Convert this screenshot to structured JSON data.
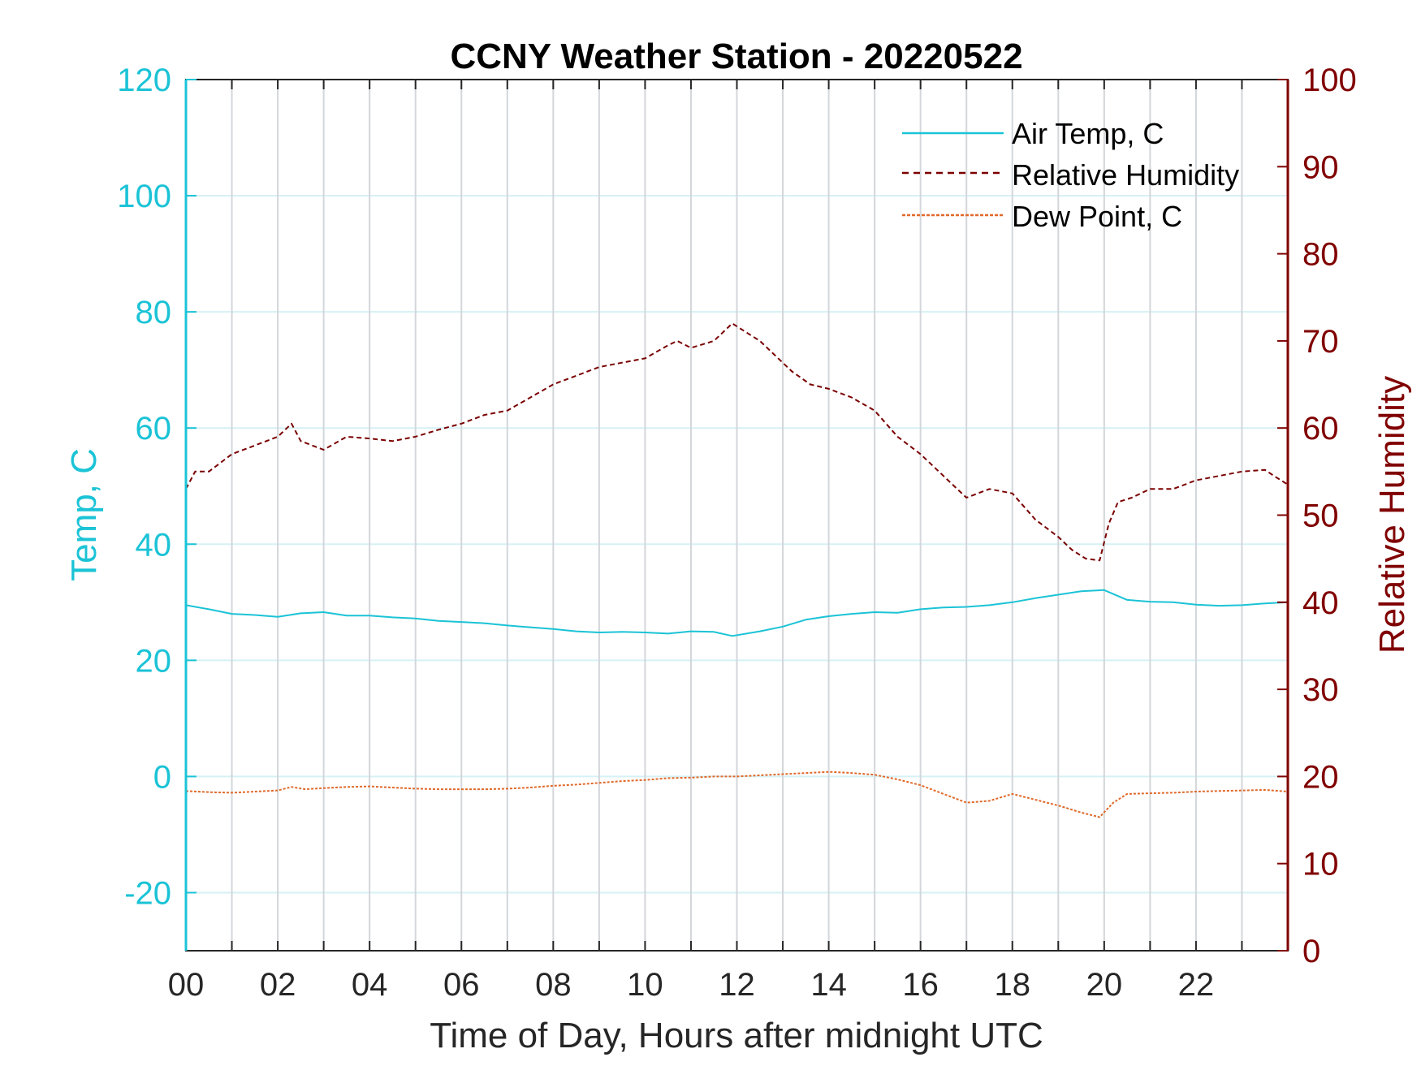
{
  "chart_data": {
    "type": "line",
    "title": "CCNY Weather Station - 20220522",
    "xlabel": "Time of Day, Hours after midnight UTC",
    "ylabel_left": "Temp, C",
    "ylabel_right": "Relative Humidity",
    "xlim": [
      0,
      24
    ],
    "ylim_left": [
      -30,
      120
    ],
    "ylim_right": [
      0,
      100
    ],
    "x_ticks": [
      0,
      2,
      4,
      6,
      8,
      10,
      12,
      14,
      16,
      18,
      20,
      22
    ],
    "x_tick_labels": [
      "00",
      "02",
      "04",
      "06",
      "08",
      "10",
      "12",
      "14",
      "16",
      "18",
      "20",
      "22"
    ],
    "y_left_ticks": [
      -20,
      0,
      20,
      40,
      60,
      80,
      100,
      120
    ],
    "y_left_tick_labels": [
      "-20",
      "0",
      "20",
      "40",
      "60",
      "80",
      "100",
      "120"
    ],
    "y_right_ticks": [
      0,
      10,
      20,
      30,
      40,
      50,
      60,
      70,
      80,
      90,
      100
    ],
    "y_right_tick_labels": [
      "0",
      "10",
      "20",
      "30",
      "40",
      "50",
      "60",
      "70",
      "80",
      "90",
      "100"
    ],
    "grid": {
      "vertical_every_hours": 1,
      "horizontal_left_axis": true
    },
    "legend_position": "top-right",
    "colors": {
      "left_axis": "#1bc3d6",
      "right_axis": "#800000",
      "air_temp": "#1bc3d6",
      "humidity": "#7a0000",
      "dew_point": "#e0692a",
      "grid_vertical": "#d3d6da",
      "grid_horizontal": "#d5f1f5"
    },
    "series": [
      {
        "name": "Air Temp, C",
        "axis": "left",
        "style": "solid",
        "x": [
          0,
          0.5,
          1,
          1.5,
          2,
          2.5,
          3,
          3.5,
          4,
          4.5,
          5,
          5.5,
          6,
          6.5,
          7,
          7.5,
          8,
          8.5,
          9,
          9.5,
          10,
          10.5,
          11,
          11.5,
          11.9,
          12.5,
          13,
          13.5,
          14,
          14.5,
          15,
          15.5,
          16,
          16.5,
          17,
          17.5,
          18,
          18.5,
          19,
          19.5,
          20,
          20.5,
          21,
          21.5,
          22,
          22.5,
          23,
          23.5,
          24
        ],
        "y": [
          29.5,
          28.8,
          28.0,
          27.8,
          27.5,
          28.1,
          28.3,
          27.7,
          27.7,
          27.4,
          27.2,
          26.8,
          26.6,
          26.4,
          26.0,
          25.7,
          25.4,
          25.0,
          24.8,
          24.9,
          24.8,
          24.6,
          25.0,
          24.9,
          24.2,
          25.0,
          25.8,
          27.0,
          27.6,
          28.0,
          28.3,
          28.2,
          28.8,
          29.1,
          29.2,
          29.5,
          30.0,
          30.7,
          31.3,
          31.9,
          32.1,
          30.4,
          30.1,
          30.0,
          29.6,
          29.4,
          29.5,
          29.8,
          30.0
        ]
      },
      {
        "name": "Relative Humidity",
        "axis": "right",
        "style": "dashed",
        "x": [
          0,
          0.2,
          0.5,
          1,
          1.5,
          2,
          2.2,
          2.3,
          2.5,
          3,
          3.5,
          4,
          4.5,
          5,
          5.5,
          6,
          6.5,
          7,
          7.5,
          8,
          8.5,
          9,
          9.5,
          10,
          10.5,
          10.7,
          11,
          11.5,
          11.9,
          12.2,
          12.5,
          12.8,
          13.2,
          13.6,
          14,
          14.5,
          15,
          15.5,
          16,
          16.5,
          17,
          17.5,
          18,
          18.5,
          19,
          19.3,
          19.6,
          19.9,
          20.1,
          20.3,
          20.6,
          21,
          21.5,
          22,
          22.5,
          23,
          23.5,
          23.7,
          24
        ],
        "y": [
          53.0,
          55.0,
          55.0,
          57.0,
          58.0,
          59.0,
          60.0,
          60.5,
          58.5,
          57.5,
          59.0,
          58.8,
          58.5,
          59.0,
          59.8,
          60.5,
          61.5,
          62.0,
          63.5,
          65.0,
          66.0,
          67.0,
          67.5,
          68.0,
          69.5,
          70.0,
          69.2,
          70.0,
          72.0,
          71.0,
          70.0,
          68.5,
          66.5,
          65.0,
          64.5,
          63.5,
          62.0,
          59.0,
          57.0,
          54.5,
          52.0,
          53.0,
          52.5,
          49.5,
          47.5,
          46.0,
          45.0,
          44.8,
          49.0,
          51.5,
          52.0,
          53.0,
          53.0,
          54.0,
          54.5,
          55.0,
          55.2,
          54.5,
          53.5
        ]
      },
      {
        "name": "Dew Point, C",
        "axis": "left",
        "style": "dashed",
        "x": [
          0,
          0.5,
          1,
          1.5,
          2,
          2.3,
          2.6,
          3,
          3.5,
          4,
          4.5,
          5,
          5.5,
          6,
          6.5,
          7,
          7.5,
          8,
          8.5,
          9,
          9.5,
          10,
          10.5,
          11,
          11.5,
          12,
          12.5,
          13,
          13.5,
          14,
          14.5,
          15,
          15.5,
          16,
          16.5,
          17,
          17.5,
          18,
          18.5,
          19,
          19.5,
          19.9,
          20.2,
          20.5,
          21,
          21.5,
          22,
          22.5,
          23,
          23.5,
          24
        ],
        "y": [
          -2.5,
          -2.7,
          -2.8,
          -2.6,
          -2.4,
          -1.8,
          -2.2,
          -2.0,
          -1.8,
          -1.7,
          -1.9,
          -2.1,
          -2.2,
          -2.2,
          -2.2,
          -2.1,
          -1.9,
          -1.6,
          -1.4,
          -1.1,
          -0.8,
          -0.6,
          -0.3,
          -0.2,
          0.0,
          0.0,
          0.2,
          0.4,
          0.6,
          0.8,
          0.6,
          0.3,
          -0.5,
          -1.5,
          -3.0,
          -4.5,
          -4.2,
          -3.0,
          -4.0,
          -5.0,
          -6.2,
          -7.0,
          -4.5,
          -3.0,
          -2.9,
          -2.8,
          -2.6,
          -2.5,
          -2.4,
          -2.3,
          -2.6
        ]
      }
    ]
  }
}
